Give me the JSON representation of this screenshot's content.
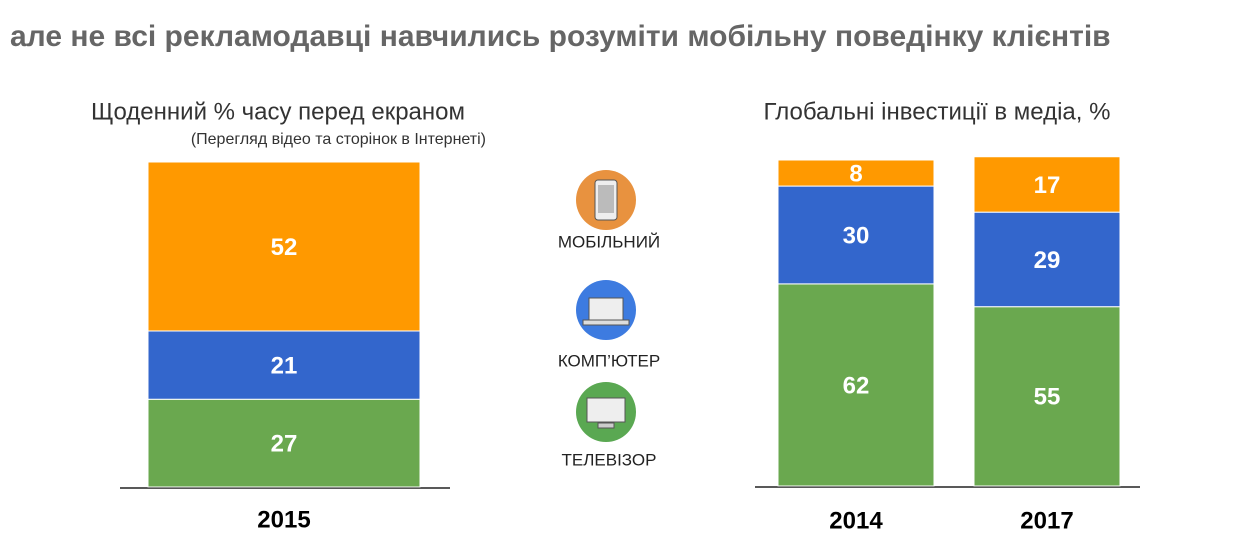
{
  "title": "але не всі рекламодавці навчились розуміти мобільну поведінку клієнтів",
  "chart_data": [
    {
      "type": "stacked-bar",
      "title": "Щоденний % часу перед екраном",
      "subtitle": "(Перегляд відео та сторінок в Інтернеті)",
      "categories": [
        "2015"
      ],
      "ylim": [
        0,
        100
      ],
      "series": [
        {
          "name": "ТЕЛЕВІЗОР",
          "color": "#6aa84f",
          "values": [
            27
          ]
        },
        {
          "name": "КОМП’ЮТЕР",
          "color": "#3366cc",
          "values": [
            21
          ]
        },
        {
          "name": "МОБІЛЬНИЙ",
          "color": "#ff9900",
          "values": [
            52
          ]
        }
      ]
    },
    {
      "type": "stacked-bar",
      "title": "Глобальні інвестиції в медіа, %",
      "categories": [
        "2014",
        "2017"
      ],
      "ylim": [
        0,
        100
      ],
      "series": [
        {
          "name": "ТЕЛЕВІЗОР",
          "color": "#6aa84f",
          "values": [
            62,
            55
          ]
        },
        {
          "name": "КОМП’ЮТЕР",
          "color": "#3366cc",
          "values": [
            30,
            29
          ]
        },
        {
          "name": "МОБІЛЬНИЙ",
          "color": "#ff9900",
          "values": [
            8,
            17
          ]
        }
      ]
    }
  ]
}
